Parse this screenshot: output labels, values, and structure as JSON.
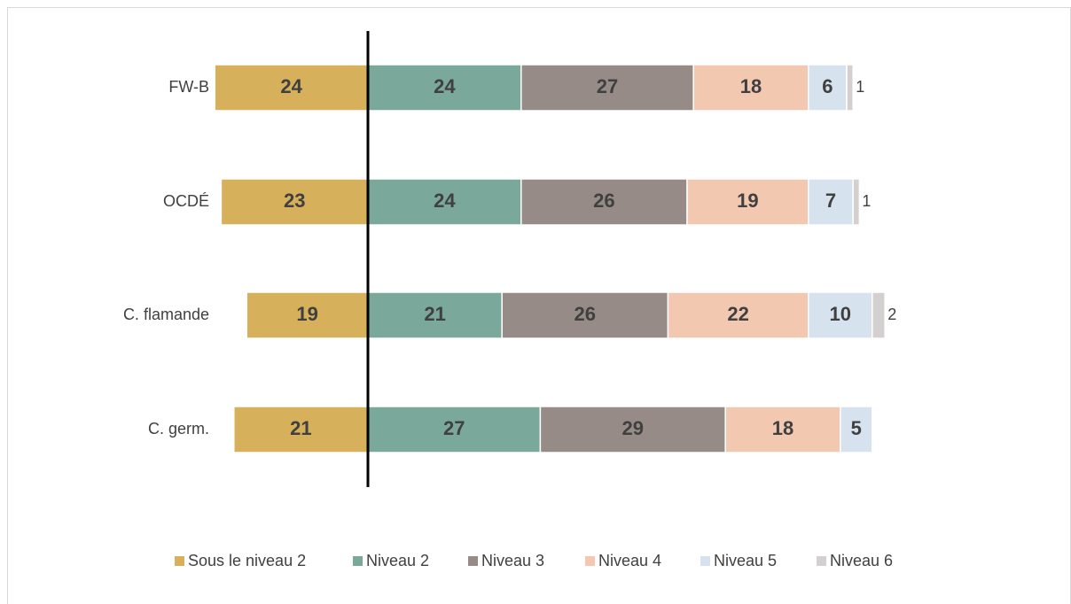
{
  "chart_data": {
    "type": "diverging-bar",
    "categories": [
      "FW-B",
      "OCDÉ",
      "C. flamande",
      "C. germ."
    ],
    "series": [
      {
        "name": "Sous le niveau 2",
        "color": "#d6b05a",
        "values": [
          24,
          23,
          19,
          21
        ]
      },
      {
        "name": "Niveau 2",
        "color": "#7aa89a",
        "values": [
          24,
          24,
          21,
          27
        ]
      },
      {
        "name": "Niveau 3",
        "color": "#968b87",
        "values": [
          27,
          26,
          26,
          29
        ]
      },
      {
        "name": "Niveau 4",
        "color": "#f2c8b0",
        "values": [
          18,
          19,
          22,
          18
        ]
      },
      {
        "name": "Niveau 5",
        "color": "#d6e3ee",
        "values": [
          6,
          7,
          10,
          5
        ]
      },
      {
        "name": "Niveau 6",
        "color": "#d3d0cf",
        "values": [
          1,
          1,
          2,
          null
        ]
      }
    ]
  }
}
